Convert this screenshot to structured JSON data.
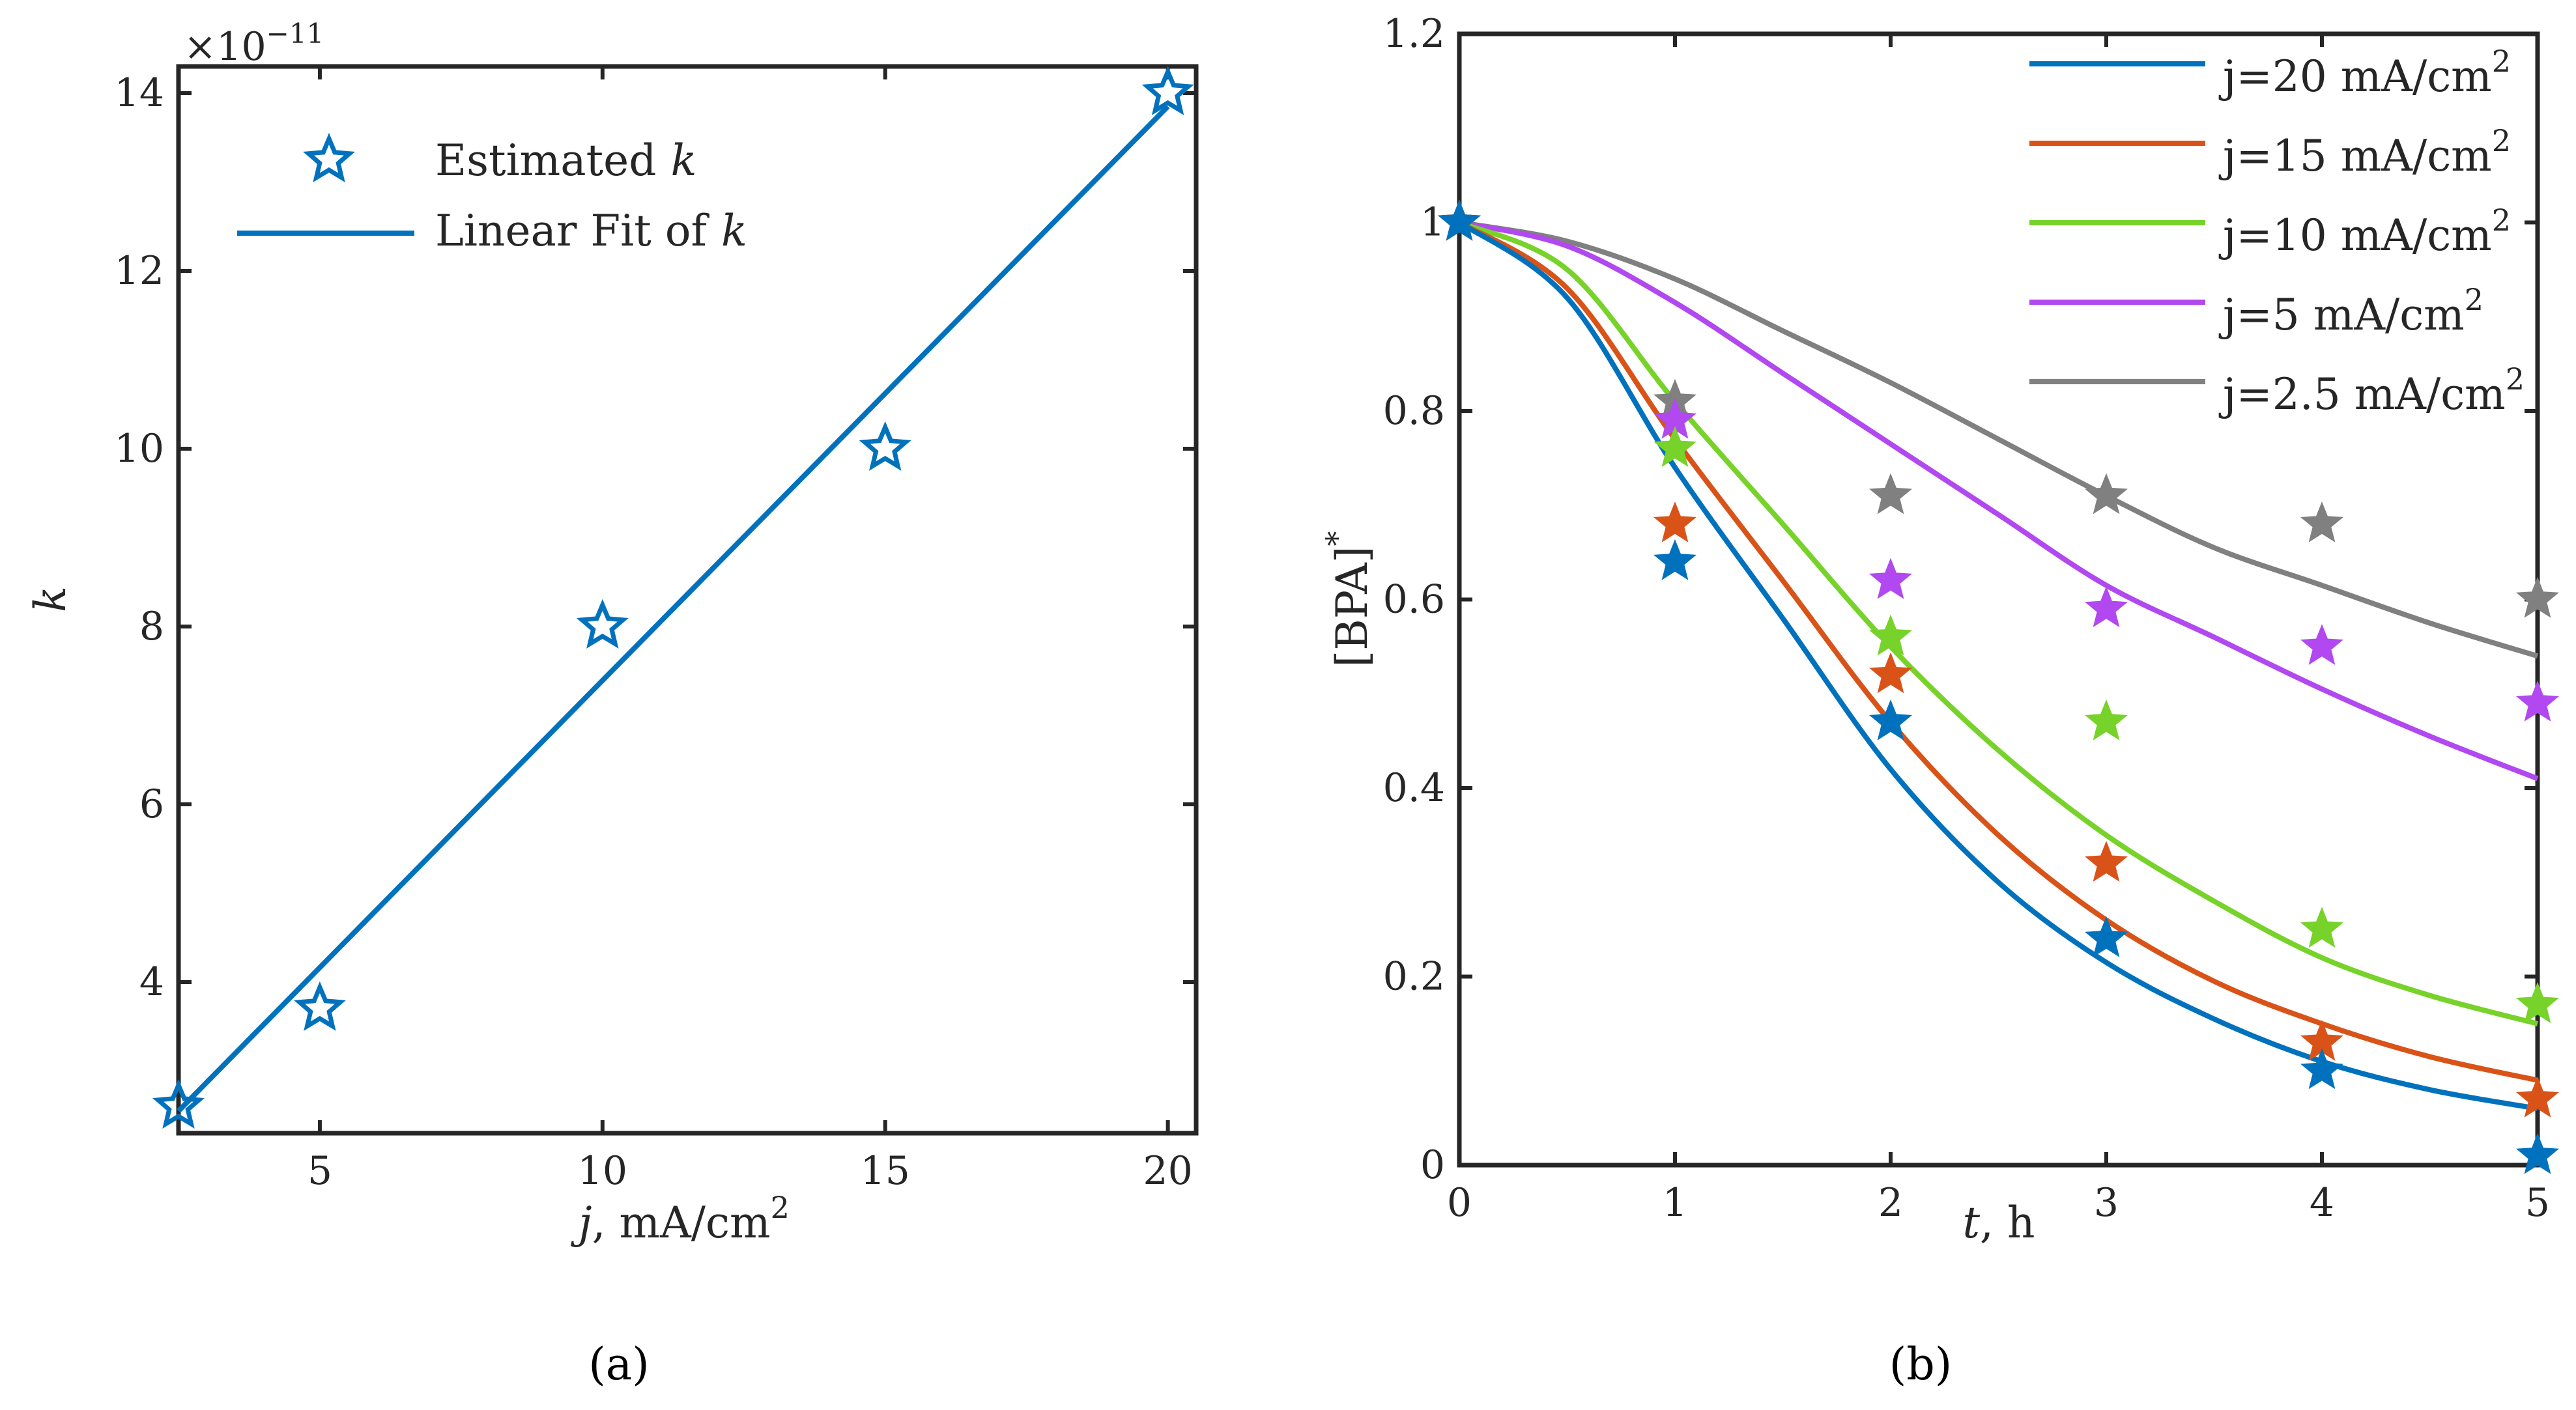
{
  "panel_labels": {
    "left": "(a)",
    "right": "(b)"
  },
  "left_legend": {
    "estimated": "Estimated",
    "fit": "Linear Fit of",
    "var": "k"
  },
  "right_legend": [
    "j=20 mA/cm",
    "j=15 mA/cm",
    "j=10 mA/cm",
    "j=5 mA/cm",
    "j=2.5 mA/cm"
  ],
  "superscript_2": "2",
  "chart_data": [
    {
      "type": "scatter",
      "title": "",
      "xlabel_var": "j",
      "xlabel_rest": ", mA/cm",
      "xlabel_sup": "2",
      "ylabel": "k",
      "y_multiplier": "×10",
      "y_multiplier_exp": "−11",
      "xlim": [
        2.5,
        20.5
      ],
      "ylim": [
        2.3,
        14.3
      ],
      "xticks": [
        5,
        10,
        15,
        20
      ],
      "yticks": [
        4,
        6,
        8,
        10,
        12,
        14
      ],
      "grid": false,
      "legend_position": "top-left",
      "series": [
        {
          "name": "Estimated k",
          "kind": "markers",
          "color": "#0072BD",
          "x": [
            2.5,
            5,
            10,
            15,
            20
          ],
          "y": [
            2.6,
            3.7,
            8.0,
            10.0,
            14.0
          ]
        },
        {
          "name": "Linear Fit of k",
          "kind": "line",
          "color": "#0072BD",
          "x": [
            2.5,
            20
          ],
          "y": [
            2.55,
            13.85
          ]
        }
      ]
    },
    {
      "type": "line",
      "title": "",
      "xlabel_var": "t",
      "xlabel_rest": ", h",
      "ylabel": "[BPA]",
      "ylabel_sup": "*",
      "xlim": [
        0,
        5
      ],
      "ylim": [
        0,
        1.2
      ],
      "xticks": [
        0,
        1,
        2,
        3,
        4,
        5
      ],
      "yticks": [
        0,
        0.2,
        0.4,
        0.6,
        0.8,
        1,
        1.2
      ],
      "ytick_labels": [
        "0",
        "0.2",
        "0.4",
        "0.6",
        "0.8",
        "1",
        "1.2"
      ],
      "grid": false,
      "legend_position": "top-right",
      "series": [
        {
          "name": "j=20 mA/cm2",
          "color": "#0072BD",
          "curve_x": [
            0,
            0.5,
            1,
            1.5,
            2,
            2.5,
            3,
            3.5,
            4,
            4.5,
            5
          ],
          "curve_y": [
            1.0,
            0.92,
            0.74,
            0.58,
            0.42,
            0.3,
            0.215,
            0.155,
            0.11,
            0.08,
            0.06
          ],
          "points_x": [
            0,
            1,
            2,
            3,
            4,
            5
          ],
          "points_y": [
            1.0,
            0.64,
            0.47,
            0.24,
            0.1,
            0.01
          ]
        },
        {
          "name": "j=15 mA/cm2",
          "color": "#D95319",
          "curve_x": [
            0,
            0.5,
            1,
            1.5,
            2,
            2.5,
            3,
            3.5,
            4,
            4.5,
            5
          ],
          "curve_y": [
            1.0,
            0.93,
            0.77,
            0.62,
            0.47,
            0.35,
            0.26,
            0.195,
            0.15,
            0.115,
            0.09
          ],
          "points_x": [
            0,
            1,
            2,
            3,
            4,
            5
          ],
          "points_y": [
            1.0,
            0.68,
            0.52,
            0.32,
            0.13,
            0.07
          ]
        },
        {
          "name": "j=10 mA/cm2",
          "color": "#77D22A",
          "curve_x": [
            0,
            0.5,
            1,
            1.5,
            2,
            2.5,
            3,
            3.5,
            4,
            4.5,
            5
          ],
          "curve_y": [
            1.0,
            0.95,
            0.81,
            0.68,
            0.55,
            0.44,
            0.35,
            0.28,
            0.22,
            0.18,
            0.15
          ],
          "points_x": [
            0,
            1,
            2,
            3,
            4,
            5
          ],
          "points_y": [
            1.0,
            0.76,
            0.56,
            0.47,
            0.25,
            0.17
          ]
        },
        {
          "name": "j=5 mA/cm2",
          "color": "#B148F0",
          "curve_x": [
            0,
            0.5,
            1,
            1.5,
            2,
            2.5,
            3,
            3.5,
            4,
            4.5,
            5
          ],
          "curve_y": [
            1.0,
            0.975,
            0.915,
            0.84,
            0.765,
            0.69,
            0.615,
            0.56,
            0.505,
            0.455,
            0.41
          ],
          "points_x": [
            0,
            1,
            2,
            3,
            4,
            5
          ],
          "points_y": [
            1.0,
            0.79,
            0.62,
            0.59,
            0.55,
            0.49
          ]
        },
        {
          "name": "j=2.5 mA/cm2",
          "color": "#808080",
          "curve_x": [
            0,
            0.5,
            1,
            1.5,
            2,
            2.5,
            3,
            3.5,
            4,
            4.5,
            5
          ],
          "curve_y": [
            1.0,
            0.98,
            0.94,
            0.885,
            0.83,
            0.77,
            0.71,
            0.655,
            0.615,
            0.575,
            0.54
          ],
          "points_x": [
            0,
            1,
            2,
            3,
            4,
            5
          ],
          "points_y": [
            1.0,
            0.81,
            0.71,
            0.71,
            0.68,
            0.6
          ]
        }
      ]
    }
  ]
}
